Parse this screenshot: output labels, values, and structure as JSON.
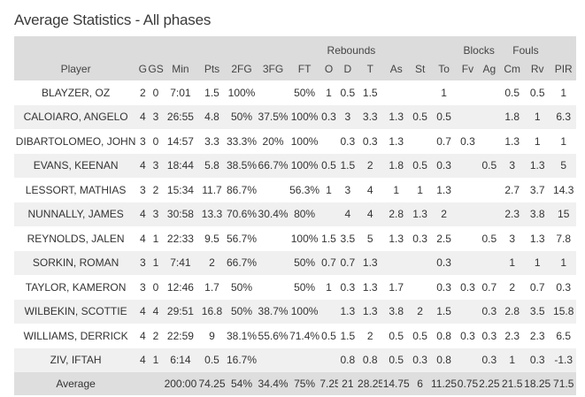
{
  "title": "Average Statistics - All phases",
  "groups": {
    "rebounds": "Rebounds",
    "blocks": "Blocks",
    "fouls": "Fouls"
  },
  "columns": [
    "Player",
    "G",
    "GS",
    "Min",
    "Pts",
    "2FG",
    "3FG",
    "FT",
    "O",
    "D",
    "T",
    "As",
    "St",
    "To",
    "Fv",
    "Ag",
    "Cm",
    "Rv",
    "PIR"
  ],
  "rows": [
    [
      "BLAYZER, OZ",
      "2",
      "0",
      "7:01",
      "1.5",
      "100%",
      "",
      "50%",
      "1",
      "0.5",
      "1.5",
      "",
      "",
      "1",
      "",
      "",
      "0.5",
      "0.5",
      "1"
    ],
    [
      "CALOIARO, ANGELO",
      "4",
      "3",
      "26:55",
      "4.8",
      "50%",
      "37.5%",
      "100%",
      "0.3",
      "3",
      "3.3",
      "1.3",
      "0.5",
      "0.5",
      "",
      "",
      "1.8",
      "1",
      "6.3"
    ],
    [
      "DIBARTOLOMEO, JOHN",
      "3",
      "0",
      "14:57",
      "3.3",
      "33.3%",
      "20%",
      "100%",
      "",
      "0.3",
      "0.3",
      "1.3",
      "",
      "0.7",
      "0.3",
      "",
      "1.3",
      "1",
      "1"
    ],
    [
      "EVANS, KEENAN",
      "4",
      "3",
      "18:44",
      "5.8",
      "38.5%",
      "66.7%",
      "100%",
      "0.5",
      "1.5",
      "2",
      "1.8",
      "0.5",
      "0.3",
      "",
      "0.5",
      "3",
      "1.3",
      "5"
    ],
    [
      "LESSORT, MATHIAS",
      "3",
      "2",
      "15:34",
      "11.7",
      "86.7%",
      "",
      "56.3%",
      "1",
      "3",
      "4",
      "1",
      "1",
      "1.3",
      "",
      "",
      "2.7",
      "3.7",
      "14.3"
    ],
    [
      "NUNNALLY, JAMES",
      "4",
      "3",
      "30:58",
      "13.3",
      "70.6%",
      "30.4%",
      "80%",
      "",
      "4",
      "4",
      "2.8",
      "1.3",
      "2",
      "",
      "",
      "2.3",
      "3.8",
      "15"
    ],
    [
      "REYNOLDS, JALEN",
      "4",
      "1",
      "22:33",
      "9.5",
      "56.7%",
      "",
      "100%",
      "1.5",
      "3.5",
      "5",
      "1.3",
      "0.3",
      "2.5",
      "",
      "0.5",
      "3",
      "1.3",
      "7.8"
    ],
    [
      "SORKIN, ROMAN",
      "3",
      "1",
      "7:41",
      "2",
      "66.7%",
      "",
      "50%",
      "0.7",
      "0.7",
      "1.3",
      "",
      "",
      "0.3",
      "",
      "",
      "1",
      "1",
      "1"
    ],
    [
      "TAYLOR, KAMERON",
      "3",
      "0",
      "12:46",
      "1.7",
      "50%",
      "",
      "50%",
      "1",
      "0.3",
      "1.3",
      "1.7",
      "",
      "0.3",
      "0.3",
      "0.7",
      "2",
      "0.7",
      "0.3"
    ],
    [
      "WILBEKIN, SCOTTIE",
      "4",
      "4",
      "29:51",
      "16.8",
      "50%",
      "38.7%",
      "100%",
      "",
      "1.3",
      "1.3",
      "3.8",
      "2",
      "1.5",
      "",
      "0.3",
      "2.8",
      "3.5",
      "15.8"
    ],
    [
      "WILLIAMS, DERRICK",
      "4",
      "2",
      "22:59",
      "9",
      "38.1%",
      "55.6%",
      "71.4%",
      "0.5",
      "1.5",
      "2",
      "0.5",
      "0.5",
      "0.8",
      "0.3",
      "0.3",
      "2.3",
      "2.3",
      "6.5"
    ],
    [
      "ZIV, IFTAH",
      "4",
      "1",
      "6:14",
      "0.5",
      "16.7%",
      "",
      "",
      "",
      "0.8",
      "0.8",
      "0.5",
      "0.3",
      "0.8",
      "",
      "0.3",
      "1",
      "0.3",
      "-1.3"
    ]
  ],
  "totals": [
    "Average",
    "",
    "",
    "200:00",
    "74.25",
    "54%",
    "34.4%",
    "75%",
    "7.25",
    "21",
    "28.25",
    "14.75",
    "6",
    "11.25",
    "0.75",
    "2.25",
    "21.5",
    "18.25",
    "71.5"
  ]
}
